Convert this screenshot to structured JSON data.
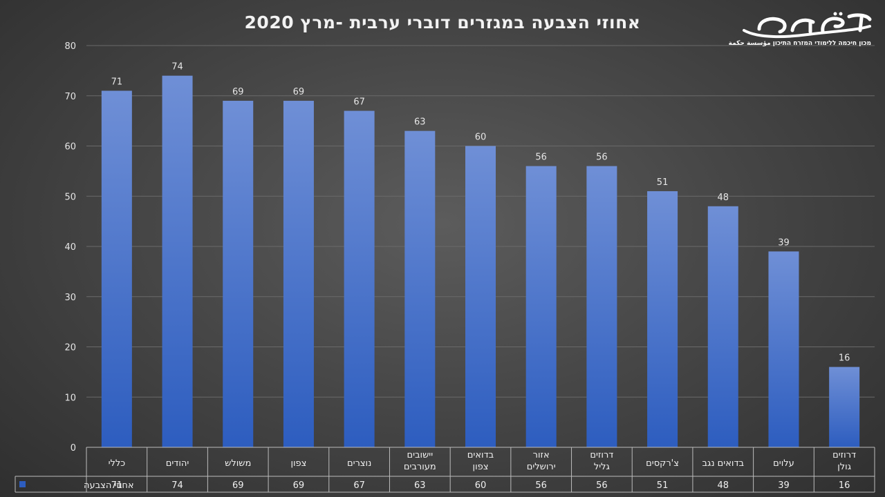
{
  "header": {
    "title": "אחוזי הצבעה במגזרים דוברי ערבית -מרץ 2020",
    "logo_text": "חכמה",
    "logo_tagline": "מכון חיכמה ללימודי המזרח התיכון مؤسسة حكمة"
  },
  "colors": {
    "bar_top": "#6f8fd6",
    "bar_bottom": "#2d5dbf",
    "grid": "#6a6a6a",
    "table_border": "#bdbdbd"
  },
  "chart_data": {
    "type": "bar",
    "title": "אחוזי הצבעה במגזרים דוברי ערבית -מרץ 2020",
    "categories": [
      "כללי",
      "יהודים",
      "משולש",
      "צפון",
      "נוצרים",
      "יישובים מעורבים",
      "בדואים צפון",
      "אזור ירושלים",
      "דרוזים גליל",
      "צ'רקסים",
      "בדואים נגב",
      "עלוים",
      "דרוזים גולן"
    ],
    "series": [
      {
        "name": "אחוזי הצבעה",
        "values": [
          71,
          74,
          69,
          69,
          67,
          63,
          60,
          56,
          56,
          51,
          48,
          39,
          16
        ]
      }
    ],
    "yticks": [
      "0",
      "10",
      "20",
      "30",
      "40",
      "50",
      "60",
      "70",
      "80"
    ],
    "ylim": [
      0,
      80
    ],
    "grid": true,
    "legend": "data-table"
  }
}
